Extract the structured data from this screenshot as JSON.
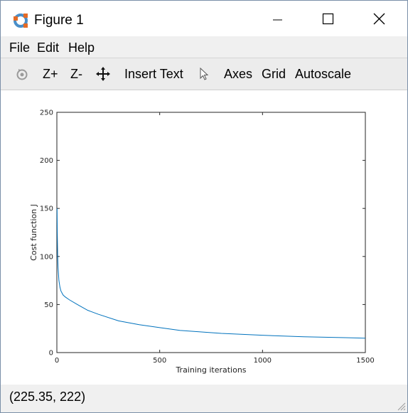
{
  "window": {
    "title": "Figure 1"
  },
  "menu": {
    "file": "File",
    "edit": "Edit",
    "help": "Help"
  },
  "toolbar": {
    "zoom_in": "Z+",
    "zoom_out": "Z-",
    "insert_text": "Insert Text",
    "axes": "Axes",
    "grid": "Grid",
    "autoscale": "Autoscale"
  },
  "status": {
    "coords": "(225.35, 222)"
  },
  "colors": {
    "line": "#0072bd"
  },
  "chart_data": {
    "type": "line",
    "xlabel": "Training iterations",
    "ylabel": "Cost function J",
    "xlim": [
      0,
      1500
    ],
    "ylim": [
      0,
      250
    ],
    "xticks": [
      "0",
      "500",
      "1000",
      "1500"
    ],
    "yticks": [
      "0",
      "50",
      "100",
      "150",
      "200",
      "250"
    ],
    "grid": false,
    "series": [
      {
        "x": [
          1,
          2,
          4,
          6,
          10,
          15,
          20,
          30,
          40,
          60,
          100,
          150,
          200,
          300,
          400,
          500,
          600,
          800,
          1000,
          1200,
          1400,
          1500
        ],
        "y": [
          150,
          125,
          100,
          88,
          75,
          68,
          64,
          60,
          58,
          55,
          50,
          44,
          40,
          33,
          29,
          26,
          23,
          20,
          18,
          16.5,
          15.5,
          15
        ]
      }
    ]
  }
}
